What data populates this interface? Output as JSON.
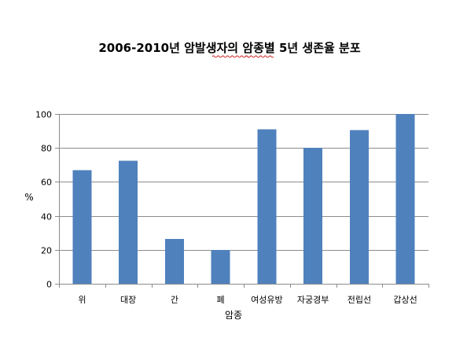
{
  "chart_data": {
    "type": "bar",
    "title": "2006-2010년 암발생자의 암종별 5년 생존율 분포",
    "xlabel": "암종",
    "ylabel": "%",
    "categories": [
      "위",
      "대장",
      "간",
      "폐",
      "여성유방",
      "자궁경부",
      "전립선",
      "갑상선"
    ],
    "values": [
      67,
      72.5,
      26.5,
      20,
      91,
      80,
      90.5,
      100
    ],
    "ylim": [
      0,
      100
    ],
    "yticks": [
      "0",
      "20",
      "40",
      "60",
      "80",
      "100"
    ],
    "grid": true,
    "legend": "none",
    "bar_color": "#4f81bd"
  }
}
